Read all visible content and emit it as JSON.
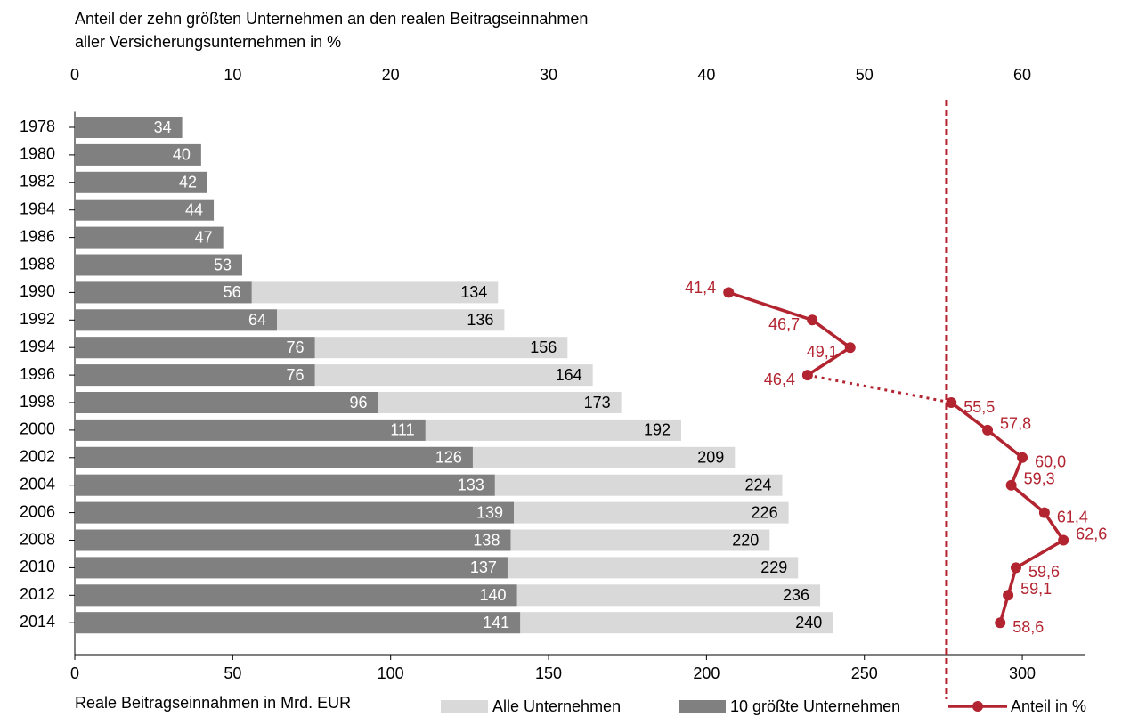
{
  "chart_data": {
    "type": "bar",
    "orientation": "horizontal",
    "x2_title": [
      "Anteil der zehn größten Unternehmen an den realen Beitragseinnahmen",
      "aller Versicherungsunternehmen  in %"
    ],
    "xlabel": "Reale Beitragseinnahmen in Mrd. EUR",
    "categories": [
      "1978",
      "1980",
      "1982",
      "1984",
      "1986",
      "1988",
      "1990",
      "1992",
      "1994",
      "1996",
      "1998",
      "2000",
      "2002",
      "2004",
      "2006",
      "2008",
      "2010",
      "2012",
      "2014"
    ],
    "series": [
      {
        "name": "Alle Unternehmen",
        "color": "#d9d9d9",
        "label_color": "#000000",
        "values": [
          null,
          null,
          null,
          null,
          null,
          null,
          134,
          136,
          156,
          164,
          173,
          192,
          209,
          224,
          226,
          220,
          229,
          236,
          240
        ]
      },
      {
        "name": "10 größte Unternehmen",
        "color": "#808080",
        "label_color": "#ffffff",
        "values": [
          34,
          40,
          42,
          44,
          47,
          53,
          56,
          64,
          76,
          76,
          96,
          111,
          126,
          133,
          139,
          138,
          137,
          140,
          141
        ]
      },
      {
        "name": "Anteil in %",
        "type": "line",
        "axis": "x2",
        "color": "#b22430",
        "values": [
          null,
          null,
          null,
          null,
          null,
          null,
          41.4,
          46.7,
          49.1,
          46.4,
          55.5,
          57.8,
          60.0,
          59.3,
          61.4,
          62.6,
          59.6,
          59.1,
          58.6
        ],
        "value_labels": [
          null,
          null,
          null,
          null,
          null,
          null,
          "41,4",
          "46,7",
          "49,1",
          "46,4",
          "55,5",
          "57,8",
          "60,0",
          "59,3",
          "61,4",
          "62,6",
          "59,6",
          "59,1",
          "58,6"
        ]
      }
    ],
    "xlim": [
      0,
      320
    ],
    "xticks": [
      0,
      50,
      100,
      150,
      200,
      250,
      300
    ],
    "x2lim": [
      0,
      64
    ],
    "x2ticks": [
      0,
      10,
      20,
      30,
      40,
      50,
      60
    ],
    "reference_line": {
      "value": 55.2,
      "axis": "x2",
      "color": "#b22430"
    },
    "dotted_segment": [
      "1996",
      "1998"
    ]
  }
}
